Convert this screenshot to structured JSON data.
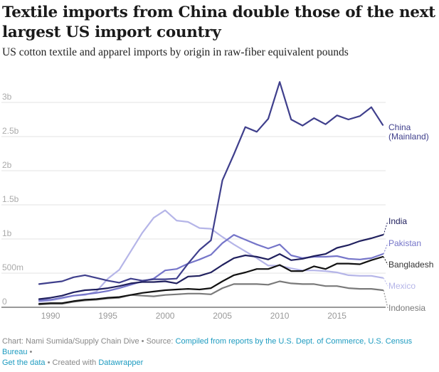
{
  "header": {
    "title": "Textile imports from China double those of the next largest US import country",
    "subtitle": "US cotton textile and apparel imports by origin in raw-fiber equivalent pounds"
  },
  "footer": {
    "chart_prefix": "Chart: Nami Sumida/Supply Chain Dive",
    "separator": " • ",
    "source_prefix": "Source: ",
    "source_link": "Compiled from reports by the U.S. Dept. of Commerce, U.S. Census Bureau",
    "get_data_link": "Get the data",
    "created_prefix": "Created with ",
    "datawrapper_link": "Datawrapper"
  },
  "colors": {
    "China (Mainland)": "#3f3f8c",
    "India": "#20205e",
    "Pakistan": "#7575c9",
    "Bangladesh": "#111111",
    "Mexico": "#b5b5e8",
    "Indonesia": "#7a7a7a",
    "link": "#1d9bc0"
  },
  "chart_data": {
    "type": "line",
    "title": "Textile imports from China double those of the next largest US import country",
    "subtitle": "US cotton textile and apparel imports by origin in raw-fiber equivalent pounds",
    "xlabel": "",
    "ylabel": "",
    "xlim": [
      1989,
      2019
    ],
    "ylim": [
      0,
      3000000000
    ],
    "grid": true,
    "legend": "inline-right",
    "x_ticks": [
      1990,
      1995,
      2000,
      2005,
      2010,
      2015
    ],
    "x_tick_labels": [
      "1990",
      "1995",
      "2000",
      "2005",
      "2010",
      "2015"
    ],
    "y_ticks": [
      0,
      500000000,
      1000000000,
      1500000000,
      2000000000,
      2500000000,
      3000000000
    ],
    "y_tick_labels": [
      "0",
      "500m",
      "1b",
      "1.5b",
      "2b",
      "2.5b",
      "3b"
    ],
    "x": [
      1989,
      1990,
      1991,
      1992,
      1993,
      1994,
      1995,
      1996,
      1997,
      1998,
      1999,
      2000,
      2001,
      2002,
      2003,
      2004,
      2005,
      2006,
      2007,
      2008,
      2009,
      2010,
      2011,
      2012,
      2013,
      2014,
      2015,
      2016,
      2017,
      2018,
      2019
    ],
    "series": [
      {
        "name": "China (Mainland)",
        "label_lines": [
          "China",
          "(Mainland)"
        ],
        "values": [
          0.34,
          0.36,
          0.38,
          0.44,
          0.47,
          0.43,
          0.39,
          0.36,
          0.42,
          0.39,
          0.41,
          0.41,
          0.42,
          0.64,
          0.84,
          0.98,
          1.86,
          2.24,
          2.64,
          2.57,
          2.76,
          3.3,
          2.75,
          2.66,
          2.77,
          2.68,
          2.81,
          2.75,
          2.8,
          2.93,
          2.67
        ]
      },
      {
        "name": "India",
        "label_lines": [
          "India"
        ],
        "values": [
          0.12,
          0.14,
          0.17,
          0.22,
          0.25,
          0.26,
          0.28,
          0.31,
          0.35,
          0.37,
          0.37,
          0.38,
          0.35,
          0.45,
          0.46,
          0.51,
          0.62,
          0.72,
          0.76,
          0.74,
          0.7,
          0.78,
          0.69,
          0.71,
          0.75,
          0.78,
          0.87,
          0.91,
          0.97,
          1.01,
          1.06
        ]
      },
      {
        "name": "Pakistan",
        "label_lines": [
          "Pakistan"
        ],
        "values": [
          0.1,
          0.11,
          0.14,
          0.17,
          0.19,
          0.21,
          0.24,
          0.28,
          0.33,
          0.38,
          0.42,
          0.54,
          0.56,
          0.64,
          0.7,
          0.77,
          0.94,
          1.06,
          0.99,
          0.92,
          0.86,
          0.92,
          0.76,
          0.72,
          0.74,
          0.74,
          0.75,
          0.71,
          0.7,
          0.72,
          0.78
        ]
      },
      {
        "name": "Bangladesh",
        "label_lines": [
          "Bangladesh"
        ],
        "values": [
          0.05,
          0.06,
          0.06,
          0.09,
          0.11,
          0.12,
          0.14,
          0.15,
          0.18,
          0.21,
          0.23,
          0.25,
          0.26,
          0.27,
          0.26,
          0.28,
          0.38,
          0.47,
          0.51,
          0.56,
          0.56,
          0.62,
          0.53,
          0.53,
          0.6,
          0.56,
          0.64,
          0.64,
          0.63,
          0.69,
          0.74
        ]
      },
      {
        "name": "Mexico",
        "label_lines": [
          "Mexico"
        ],
        "values": [
          0.08,
          0.1,
          0.13,
          0.17,
          0.18,
          0.23,
          0.42,
          0.55,
          0.82,
          1.09,
          1.31,
          1.42,
          1.27,
          1.25,
          1.16,
          1.15,
          1.03,
          0.92,
          0.82,
          0.72,
          0.61,
          0.61,
          0.57,
          0.54,
          0.54,
          0.53,
          0.51,
          0.47,
          0.46,
          0.46,
          0.43
        ]
      },
      {
        "name": "Indonesia",
        "label_lines": [
          "Indonesia"
        ],
        "values": [
          0.04,
          0.05,
          0.05,
          0.08,
          0.1,
          0.11,
          0.13,
          0.14,
          0.18,
          0.17,
          0.16,
          0.18,
          0.19,
          0.2,
          0.2,
          0.19,
          0.28,
          0.34,
          0.34,
          0.34,
          0.33,
          0.38,
          0.35,
          0.34,
          0.34,
          0.31,
          0.31,
          0.28,
          0.27,
          0.27,
          0.25
        ]
      }
    ],
    "values_unit": "billion pounds"
  }
}
